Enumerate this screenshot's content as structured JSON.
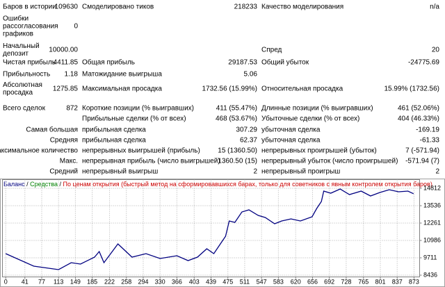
{
  "report": {
    "rows": [
      [
        "Баров в истории",
        "109630",
        "Смоделировано тиков",
        "218233",
        "Качество моделирования",
        "n/a"
      ],
      [
        "Ошибки рассогласования графиков",
        "0",
        null,
        null,
        null,
        null
      ],
      [
        "Начальный депозит",
        "10000.00",
        null,
        null,
        "Спред",
        "20"
      ],
      [
        "Чистая прибыль",
        "4411.85",
        "Общая прибыль",
        "29187.53",
        "Общий убыток",
        "-24775.69"
      ],
      [
        "Прибыльность",
        "1.18",
        "Матожидание выигрыша",
        "5.06",
        null,
        null
      ],
      [
        "Абсолютная просадка",
        "1275.85",
        "Максимальная просадка",
        "1732.56 (15.99%)",
        "Относительная просадка",
        "15.99% (1732.56)"
      ],
      [
        "Всего сделок",
        "872",
        "Короткие позиции (% выигравших)",
        "411 (55.47%)",
        "Длинные позиции (% выигравших)",
        "461 (52.06%)"
      ],
      [
        null,
        null,
        "Прибыльные сделки (% от всех)",
        "468 (53.67%)",
        "Убыточные сделки (% от всех)",
        "404 (46.33%)"
      ],
      [
        "Самая большая",
        null,
        "прибыльная сделка",
        "307.29",
        "убыточная сделка",
        "-169.19"
      ],
      [
        "Средняя",
        null,
        "прибыльная сделка",
        "62.37",
        "убыточная сделка",
        "-61.33"
      ],
      [
        "Максимальное количество",
        null,
        "непрерывных выигрышей (прибыль)",
        "15 (1360.50)",
        "непрерывных проигрышей (убыток)",
        "7 (-571.94)"
      ],
      [
        "Макс.",
        null,
        "непрерывная прибыль (число выигрышей)",
        "1360.50 (15)",
        "непрерывный убыток (число проигрышей)",
        "-571.94 (7)"
      ],
      [
        "Средний",
        null,
        "непрерывный выигрыш",
        "2",
        "непрерывный проигрыш",
        "2"
      ]
    ]
  },
  "chart": {
    "type": "line",
    "legend": [
      {
        "text": "Баланс",
        "color": "#000080"
      },
      {
        "text": "/",
        "color": "#000000"
      },
      {
        "text": "Средства",
        "color": "#008000"
      },
      {
        "text": "/",
        "color": "#000000"
      },
      {
        "text": "По ценам открытия (быстрый метод на сформировавшихся барах, только для советников с явным контролем открытия баров)",
        "color": "#cc0000"
      }
    ],
    "x": [
      0,
      60,
      113,
      140,
      160,
      190,
      200,
      210,
      240,
      270,
      300,
      330,
      366,
      390,
      410,
      430,
      445,
      460,
      470,
      478,
      490,
      505,
      520,
      540,
      555,
      575,
      590,
      610,
      630,
      655,
      665,
      675,
      680,
      695,
      715,
      735,
      760,
      780,
      800,
      820,
      840,
      860,
      872
    ],
    "series": [
      {
        "color": "#000080",
        "values": [
          10017,
          9099,
          8844,
          9354,
          9252,
          9762,
          10170,
          9354,
          10731,
          9762,
          10017,
          9660,
          9864,
          9507,
          9762,
          10374,
          10017,
          10782,
          11292,
          12414,
          12312,
          13077,
          13230,
          12822,
          12669,
          12210,
          12414,
          12567,
          12414,
          12720,
          13332,
          13842,
          14607,
          14454,
          14760,
          14352,
          14607,
          14250,
          14505,
          14709,
          14556,
          14607,
          14412
        ]
      }
    ],
    "xlim": [
      -7,
      885
    ],
    "ylim": [
      8283,
      15270
    ],
    "xticks": [
      0,
      41,
      77,
      113,
      149,
      185,
      222,
      258,
      294,
      330,
      366,
      403,
      439,
      475,
      511,
      547,
      583,
      620,
      656,
      692,
      728,
      765,
      801,
      837,
      873
    ],
    "yticks": [
      14812,
      13536,
      12261,
      10986,
      9711,
      8436
    ],
    "grid": true
  }
}
